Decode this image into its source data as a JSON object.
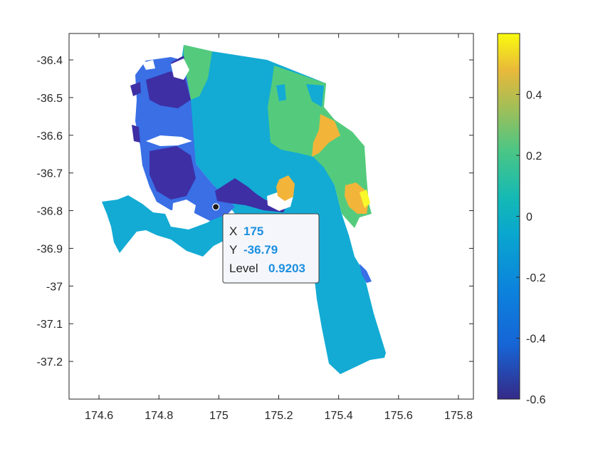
{
  "chart_data": {
    "type": "heatmap",
    "title": "",
    "xlabel": "",
    "ylabel": "",
    "xlim": [
      174.5,
      175.85
    ],
    "ylim": [
      -37.3,
      -36.33
    ],
    "xticks": [
      "174.6",
      "174.8",
      "175",
      "175.2",
      "175.4",
      "175.6",
      "175.8"
    ],
    "xtick_values": [
      174.6,
      174.8,
      175.0,
      175.2,
      175.4,
      175.6,
      175.8
    ],
    "yticks": [
      "-36.4",
      "-36.5",
      "-36.6",
      "-36.7",
      "-36.8",
      "-36.9",
      "-37",
      "-37.1",
      "-37.2"
    ],
    "ytick_values": [
      -36.4,
      -36.5,
      -36.6,
      -36.7,
      -36.8,
      -36.9,
      -37.0,
      -37.1,
      -37.2
    ],
    "colorbar": {
      "colormap": "parula",
      "clim": [
        -0.6,
        0.6
      ],
      "ticks": [
        "0.4",
        "0.2",
        "0",
        "-0.2",
        "-0.4",
        "-0.6"
      ],
      "tick_values": [
        0.4,
        0.2,
        0,
        -0.2,
        -0.4,
        -0.6
      ]
    },
    "grid": false,
    "datatip": {
      "x_label": "X",
      "x_value": "175",
      "y_label": "Y",
      "y_value": "-36.79",
      "level_label": "Level",
      "level_value": "0.9203",
      "x": 174.99,
      "y": -36.79
    }
  },
  "colors": {
    "deep_blue": "#3e2fa5",
    "blue": "#3a6fe6",
    "mid_blue": "#2f8ce9",
    "cyan": "#13abd4",
    "green": "#54cb7c",
    "orange": "#f2b53a",
    "yellow": "#f9f82a",
    "axis": "#262626",
    "tip_value": "#1a8fe0"
  }
}
